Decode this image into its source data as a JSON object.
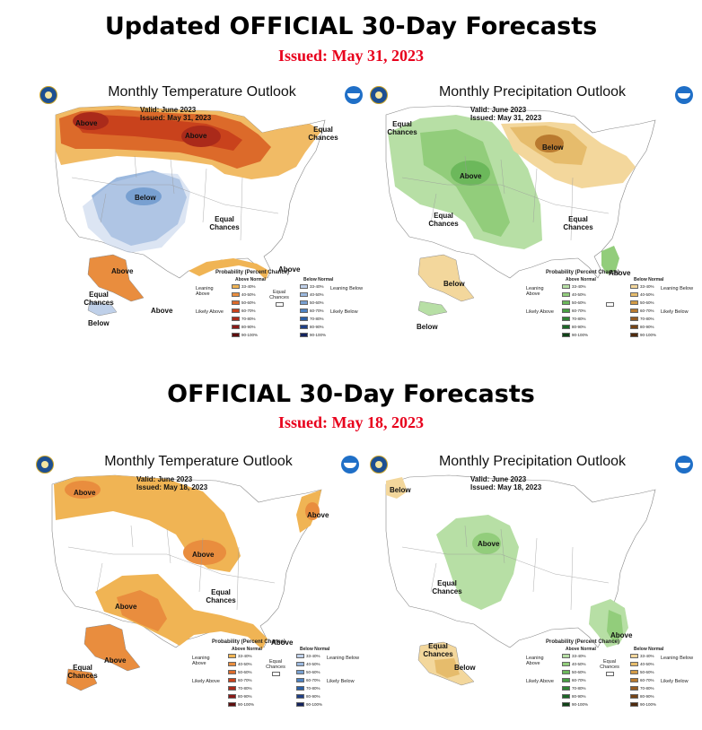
{
  "sections": [
    {
      "heading": "Updated OFFICIAL 30-Day Forecasts",
      "issued": "Issued: May 31, 2023",
      "maps": [
        {
          "title": "Monthly Temperature Outlook",
          "valid": "Valid:  June 2023",
          "issued": "Issued:  May 31, 2023",
          "region_labels": [
            "Above",
            "Above",
            "Equal Chances",
            "Below",
            "Equal Chances",
            "Above",
            "Above",
            "Equal Chances",
            "Above",
            "Below"
          ],
          "legend": {
            "title": "Probability (Percent Chance)",
            "left_header": "Above Normal",
            "right_header": "Below Normal",
            "left_top": "Leaning Above",
            "left_bottom": "Likely Above",
            "middle": "Equal Chances",
            "right_top": "Leaning Below",
            "right_bottom": "Likely Below",
            "bins": [
              "33-40%",
              "40-50%",
              "50-60%",
              "60-70%",
              "70-80%",
              "80-90%",
              "90-100%"
            ],
            "left_colors": [
              "#f0b454",
              "#e98d3e",
              "#dc6a2a",
              "#c9421c",
              "#aa2a1a",
              "#8b1a17",
              "#5e0e0e"
            ],
            "right_colors": [
              "#bfd0e9",
              "#9bb8de",
              "#78a0d1",
              "#4d82c2",
              "#2b5fa6",
              "#1f3f86",
              "#14235e"
            ]
          }
        },
        {
          "title": "Monthly Precipitation Outlook",
          "valid": "Valid:  June 2023",
          "issued": "Issued:  May 31, 2023",
          "region_labels": [
            "Equal Chances",
            "Below",
            "Above",
            "Equal Chances",
            "Equal Chances",
            "Below",
            "Above",
            "Below"
          ],
          "legend": {
            "title": "Probability (Percent Chance)",
            "left_header": "Above Normal",
            "right_header": "Below Normal",
            "left_top": "Leaning Above",
            "left_bottom": "Likely Above",
            "middle": "",
            "right_top": "Leaning Below",
            "right_bottom": "Likely Below",
            "bins": [
              "33-40%",
              "40-50%",
              "50-60%",
              "60-70%",
              "70-80%",
              "80-90%",
              "90-100%"
            ],
            "left_colors": [
              "#b7dfa5",
              "#92cd7b",
              "#6cb85b",
              "#489f43",
              "#2f8433",
              "#1d6626",
              "#104218"
            ],
            "right_colors": [
              "#f3d79c",
              "#e6bc6c",
              "#d29b46",
              "#b97a2f",
              "#965c22",
              "#754417",
              "#4f2b0e"
            ]
          }
        }
      ]
    },
    {
      "heading": "OFFICIAL 30-Day Forecasts",
      "issued": "Issued: May 18, 2023",
      "maps": [
        {
          "title": "Monthly Temperature Outlook",
          "valid": "Valid:  June 2023",
          "issued": "Issued:  May 18, 2023",
          "region_labels": [
            "Above",
            "Above",
            "Above",
            "Equal Chances",
            "Above",
            "Above",
            "Above",
            "Equal Chances"
          ],
          "legend": {
            "title": "Probability (Percent Chance)",
            "left_header": "Above Normal",
            "right_header": "Below Normal",
            "left_top": "Leaning Above",
            "left_bottom": "Likely Above",
            "middle": "Equal Chances",
            "right_top": "Leaning Below",
            "right_bottom": "Likely Below",
            "bins": [
              "33-40%",
              "40-50%",
              "50-60%",
              "60-70%",
              "70-80%",
              "80-90%",
              "90-100%"
            ],
            "left_colors": [
              "#f0b454",
              "#e98d3e",
              "#dc6a2a",
              "#c9421c",
              "#aa2a1a",
              "#8b1a17",
              "#5e0e0e"
            ],
            "right_colors": [
              "#bfd0e9",
              "#9bb8de",
              "#78a0d1",
              "#4d82c2",
              "#2b5fa6",
              "#1f3f86",
              "#14235e"
            ]
          }
        },
        {
          "title": "Monthly Precipitation Outlook",
          "valid": "Valid:  June 2023",
          "issued": "Issued:  May 18, 2023",
          "region_labels": [
            "Below",
            "Above",
            "Equal Chances",
            "Above",
            "Equal Chances",
            "Below"
          ],
          "legend": {
            "title": "Probability (Percent Chance)",
            "left_header": "Above Normal",
            "right_header": "Below Normal",
            "left_top": "Leaning Above",
            "left_bottom": "Likely Above",
            "middle": "Equal Chances",
            "right_top": "Leaning Below",
            "right_bottom": "Likely Below",
            "bins": [
              "33-40%",
              "40-50%",
              "50-60%",
              "60-70%",
              "70-80%",
              "80-90%",
              "90-100%"
            ],
            "left_colors": [
              "#b7dfa5",
              "#92cd7b",
              "#6cb85b",
              "#489f43",
              "#2f8433",
              "#1d6626",
              "#104218"
            ],
            "right_colors": [
              "#f3d79c",
              "#e6bc6c",
              "#d29b46",
              "#b97a2f",
              "#965c22",
              "#754417",
              "#4f2b0e"
            ]
          }
        }
      ]
    }
  ]
}
